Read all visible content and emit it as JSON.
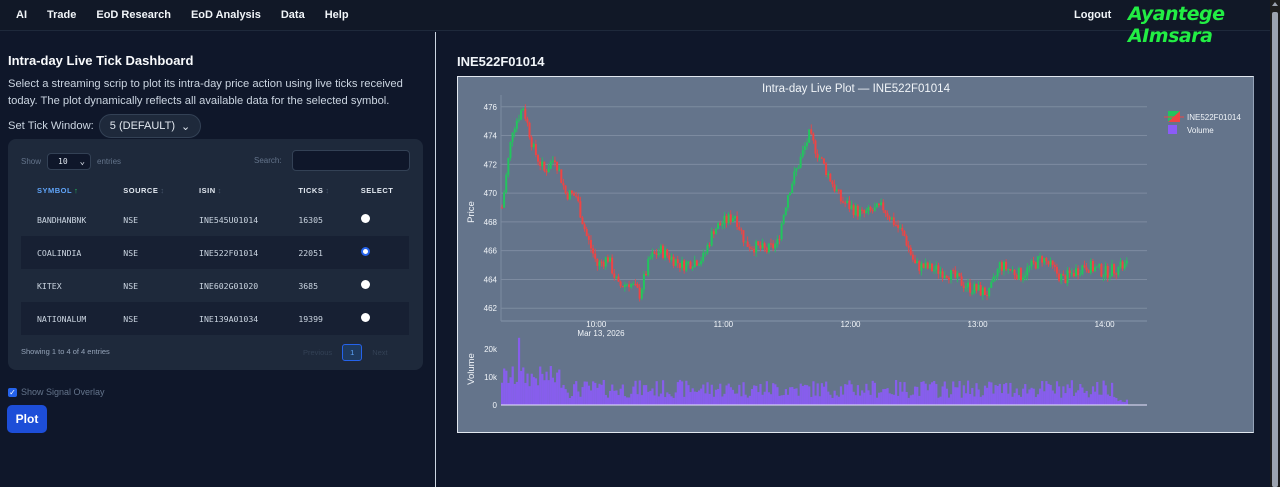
{
  "nav": {
    "items": [
      "AI",
      "Trade",
      "EoD Research",
      "EoD Analysis",
      "Data",
      "Help"
    ],
    "logout": "Logout",
    "brand": "Ayantege AImsara"
  },
  "left": {
    "title": "Intra-day Live Tick Dashboard",
    "description": "Select a streaming scrip to plot its intra-day price action using live ticks received today. The plot dynamically reflects all available data for the selected symbol.",
    "tick_window_label": "Set Tick Window:",
    "tick_window_value": "5 (DEFAULT)",
    "table": {
      "show_label": "Show",
      "show_value": "10",
      "entries_label": "entries",
      "search_label": "Search:",
      "search_value": "",
      "columns": [
        "SYMBOL",
        "SOURCE",
        "ISIN",
        "TICKS",
        "SELECT"
      ],
      "rows": [
        {
          "symbol": "BANDHANBNK",
          "source": "NSE",
          "isin": "INE545U01014",
          "ticks": "16305",
          "selected": false
        },
        {
          "symbol": "COALINDIA",
          "source": "NSE",
          "isin": "INE522F01014",
          "ticks": "22051",
          "selected": true
        },
        {
          "symbol": "KITEX",
          "source": "NSE",
          "isin": "INE602G01020",
          "ticks": "3685",
          "selected": false
        },
        {
          "symbol": "NATIONALUM",
          "source": "NSE",
          "isin": "INE139A01034",
          "ticks": "19399",
          "selected": false
        }
      ],
      "info": "Showing 1 to 4 of 4 entries",
      "previous": "Previous",
      "page": "1",
      "next": "Next"
    },
    "overlay_label": "Show Signal Overlay",
    "overlay_checked": true,
    "plot_button": "Plot"
  },
  "right": {
    "heading": "INE522F01014"
  },
  "chart_data": {
    "type": "candlestick",
    "title": "Intra-day Live Plot — INE522F01014",
    "xlabel": "",
    "x_ticks": [
      "10:00",
      "11:00",
      "12:00",
      "13:00",
      "14:00"
    ],
    "x_subtitle": "Mar 13, 2026",
    "price_axis": {
      "label": "Price",
      "ticks": [
        462,
        464,
        466,
        468,
        470,
        472,
        474,
        476
      ],
      "range": [
        461.6,
        476.4
      ]
    },
    "volume_axis": {
      "label": "Volume",
      "ticks": [
        "0",
        "10k",
        "20k"
      ],
      "range": [
        0,
        25000
      ]
    },
    "legend": [
      {
        "name": "INE522F01014",
        "type": "candlestick",
        "colors": [
          "#22c55e",
          "#ef4444"
        ]
      },
      {
        "name": "Volume",
        "type": "bar",
        "color": "#8b5cf6"
      }
    ],
    "price_path": [
      [
        "09:15",
        469.0
      ],
      [
        "09:20",
        474.5
      ],
      [
        "09:25",
        476.0
      ],
      [
        "09:30",
        473.0
      ],
      [
        "09:35",
        471.5
      ],
      [
        "09:40",
        472.5
      ],
      [
        "09:45",
        470.0
      ],
      [
        "09:50",
        469.8
      ],
      [
        "09:55",
        467.0
      ],
      [
        "10:00",
        465.0
      ],
      [
        "10:05",
        465.5
      ],
      [
        "10:10",
        463.5
      ],
      [
        "10:15",
        463.8
      ],
      [
        "10:20",
        463.0
      ],
      [
        "10:25",
        465.5
      ],
      [
        "10:30",
        466.0
      ],
      [
        "10:40",
        465.0
      ],
      [
        "10:50",
        465.5
      ],
      [
        "10:55",
        467.5
      ],
      [
        "11:05",
        468.5
      ],
      [
        "11:10",
        466.5
      ],
      [
        "11:20",
        466.0
      ],
      [
        "11:25",
        466.5
      ],
      [
        "11:30",
        470.0
      ],
      [
        "11:35",
        472.0
      ],
      [
        "11:40",
        474.0
      ],
      [
        "11:45",
        472.5
      ],
      [
        "11:55",
        469.5
      ],
      [
        "12:05",
        468.5
      ],
      [
        "12:15",
        469.0
      ],
      [
        "12:25",
        467.0
      ],
      [
        "12:30",
        465.0
      ],
      [
        "12:45",
        464.5
      ],
      [
        "12:55",
        463.5
      ],
      [
        "13:05",
        463.0
      ],
      [
        "13:10",
        465.0
      ],
      [
        "13:20",
        464.3
      ],
      [
        "13:30",
        465.5
      ],
      [
        "13:40",
        464.0
      ],
      [
        "13:50",
        465.0
      ],
      [
        "14:00",
        464.5
      ],
      [
        "14:10",
        465.0
      ]
    ],
    "volume_peak": 24000,
    "grid": true,
    "legend_position": "top-right"
  },
  "colors": {
    "background": "#0f172a",
    "plot_bg": "#64748b",
    "brand": "#22ee44",
    "accent": "#2563eb",
    "up": "#22c55e",
    "down": "#ef4444",
    "volume": "#8b5cf6"
  }
}
